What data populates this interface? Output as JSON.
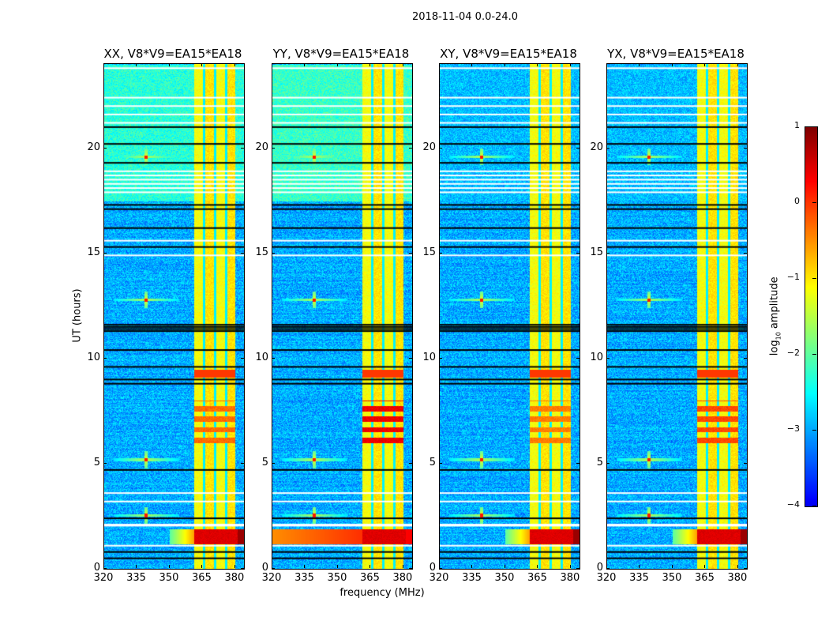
{
  "chart_data": {
    "type": "heatmap",
    "title": "2018-11-04 0.0-24.0",
    "xlabel": "frequency (MHz)",
    "ylabel": "UT (hours)",
    "xlim": [
      320,
      384
    ],
    "ylim": [
      0,
      24
    ],
    "xticks": [
      "320",
      "335",
      "350",
      "365",
      "380"
    ],
    "xtick_values": [
      320,
      335,
      350,
      365,
      380
    ],
    "yticks": [
      "0",
      "5",
      "10",
      "15",
      "20"
    ],
    "ytick_values": [
      0,
      5,
      10,
      15,
      20
    ],
    "panels": [
      {
        "title": "XX, V8*V9=EA15*EA18",
        "pol": "XX",
        "quiet_top_level": -2.3,
        "rfi_block_6_8h": -0.2
      },
      {
        "title": "YY, V8*V9=EA15*EA18",
        "pol": "YY",
        "quiet_top_level": -2.2,
        "rfi_block_6_8h": 0.5
      },
      {
        "title": "XY, V8*V9=EA15*EA18",
        "pol": "XY",
        "quiet_top_level": -2.9,
        "rfi_block_6_8h": -0.3
      },
      {
        "title": "YX, V8*V9=EA15*EA18",
        "pol": "YX",
        "quiet_top_level": -2.9,
        "rfi_block_6_8h": 0.0
      }
    ],
    "colorbar": {
      "label_prefix": "log",
      "label_sub": "10",
      "label_suffix": " amplitude",
      "range": [
        -4,
        1
      ],
      "ticks": [
        "1",
        "0",
        "−1",
        "−2",
        "−3",
        "−4"
      ],
      "tick_values": [
        1,
        0,
        -1,
        -2,
        -3,
        -4
      ],
      "colormap": "jet"
    },
    "features": {
      "background_level": -3.0,
      "band_MHz": [
        361,
        381
      ],
      "band_level": -1.1,
      "band_gaps_MHz": [
        365.6,
        370.6,
        375.6
      ],
      "strong_rfi_hours": [
        1.2,
        1.9
      ],
      "point_sources": [
        {
          "freq": 339,
          "hours": [
            2.55,
            5.2,
            12.8,
            19.6
          ]
        }
      ],
      "flagged_white_hours": [
        1.1,
        2.05,
        2.1,
        3.2,
        3.6,
        14.9,
        15.6,
        17.9,
        18.1,
        18.3,
        18.5,
        18.7,
        18.9,
        21.2,
        21.6,
        22.0,
        22.4,
        23.8
      ],
      "flagged_black_hours": [
        0.5,
        0.8,
        2.4,
        4.7,
        8.8,
        9.0,
        9.6,
        10.4,
        11.3,
        11.4,
        11.5,
        11.6,
        15.3,
        16.2,
        17.1,
        17.3,
        19.3,
        20.2,
        21.0
      ]
    }
  }
}
